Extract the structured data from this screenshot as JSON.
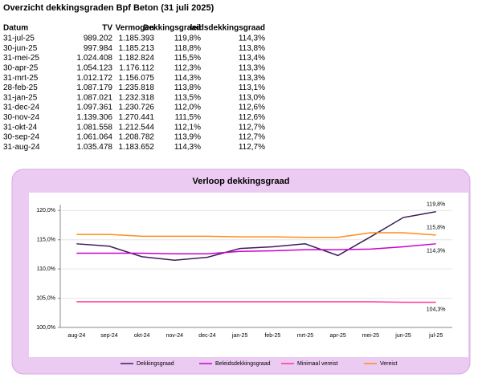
{
  "header": {
    "title": "Overzicht dekkingsgraden Bpf Beton (31 juli 2025)"
  },
  "table": {
    "columns": [
      "Datum",
      "TV",
      "Vermogen",
      "Dekkingsgraad",
      "leidsdekkingsgraad"
    ],
    "rows": [
      [
        "31-jul-25",
        "989.202",
        "1.185.393",
        "119,8%",
        "114,3%"
      ],
      [
        "30-jun-25",
        "997.984",
        "1.185.213",
        "118,8%",
        "113,8%"
      ],
      [
        "31-mei-25",
        "1.024.408",
        "1.182.824",
        "115,5%",
        "113,4%"
      ],
      [
        "30-apr-25",
        "1.054.123",
        "1.176.112",
        "112,3%",
        "113,3%"
      ],
      [
        "31-mrt-25",
        "1.012.172",
        "1.156.075",
        "114,3%",
        "113,3%"
      ],
      [
        "28-feb-25",
        "1.087.179",
        "1.235.818",
        "113,8%",
        "113,1%"
      ],
      [
        "31-jan-25",
        "1.087.021",
        "1.232.318",
        "113,5%",
        "113,0%"
      ],
      [
        "31-dec-24",
        "1.097.361",
        "1.230.726",
        "112,0%",
        "112,6%"
      ],
      [
        "30-nov-24",
        "1.139.306",
        "1.270.441",
        "111,5%",
        "112,6%"
      ],
      [
        "31-okt-24",
        "1.081.558",
        "1.212.544",
        "112,1%",
        "112,7%"
      ],
      [
        "30-sep-24",
        "1.061.064",
        "1.208.782",
        "113,9%",
        "112,7%"
      ],
      [
        "31-aug-24",
        "1.035.478",
        "1.183.652",
        "114,3%",
        "112,7%"
      ]
    ]
  },
  "chart_data": {
    "type": "line",
    "title": "Verloop dekkingsgraad",
    "categories": [
      "aug-24",
      "sep-24",
      "okt-24",
      "nov-24",
      "dec-24",
      "jan-25",
      "feb-25",
      "mrt-25",
      "apr-25",
      "mei-25",
      "jun-25",
      "jul-25"
    ],
    "series": [
      {
        "name": "Dekkingsgraad",
        "color": "#3b1c5c",
        "values": [
          114.3,
          113.9,
          112.1,
          111.5,
          112.0,
          113.5,
          113.8,
          114.3,
          112.3,
          115.5,
          118.8,
          119.8
        ],
        "value_labels": [
          null,
          null,
          null,
          null,
          null,
          null,
          null,
          null,
          null,
          null,
          null,
          "119,8%"
        ]
      },
      {
        "name": "Beleidsdekkingsgraad",
        "color": "#cc00cc",
        "values": [
          112.7,
          112.7,
          112.7,
          112.6,
          112.6,
          113.0,
          113.1,
          113.3,
          113.3,
          113.4,
          113.8,
          114.3
        ],
        "value_labels": [
          null,
          null,
          null,
          null,
          null,
          null,
          null,
          null,
          null,
          null,
          null,
          "114,3%"
        ]
      },
      {
        "name": "Minimaal vereist",
        "color": "#ff3399",
        "values": [
          104.4,
          104.4,
          104.4,
          104.4,
          104.4,
          104.4,
          104.4,
          104.4,
          104.4,
          104.4,
          104.3,
          104.3
        ],
        "value_labels": [
          null,
          null,
          null,
          null,
          null,
          null,
          null,
          null,
          null,
          null,
          null,
          "104,3%"
        ]
      },
      {
        "name": "Vereist",
        "color": "#ff8c1a",
        "values": [
          115.9,
          115.9,
          115.6,
          115.6,
          115.6,
          115.5,
          115.5,
          115.4,
          115.4,
          116.2,
          116.2,
          115.8
        ],
        "value_labels": [
          null,
          null,
          null,
          null,
          null,
          null,
          null,
          null,
          null,
          null,
          null,
          "115,8%"
        ]
      }
    ],
    "ylim": [
      100,
      121
    ],
    "yticks": [
      {
        "value": 100,
        "label": "100,0%"
      },
      {
        "value": 105,
        "label": "105,0%"
      },
      {
        "value": 110,
        "label": "110,0%"
      },
      {
        "value": 115,
        "label": "115,0%"
      },
      {
        "value": 120,
        "label": "120,0%"
      }
    ],
    "grid": true
  }
}
